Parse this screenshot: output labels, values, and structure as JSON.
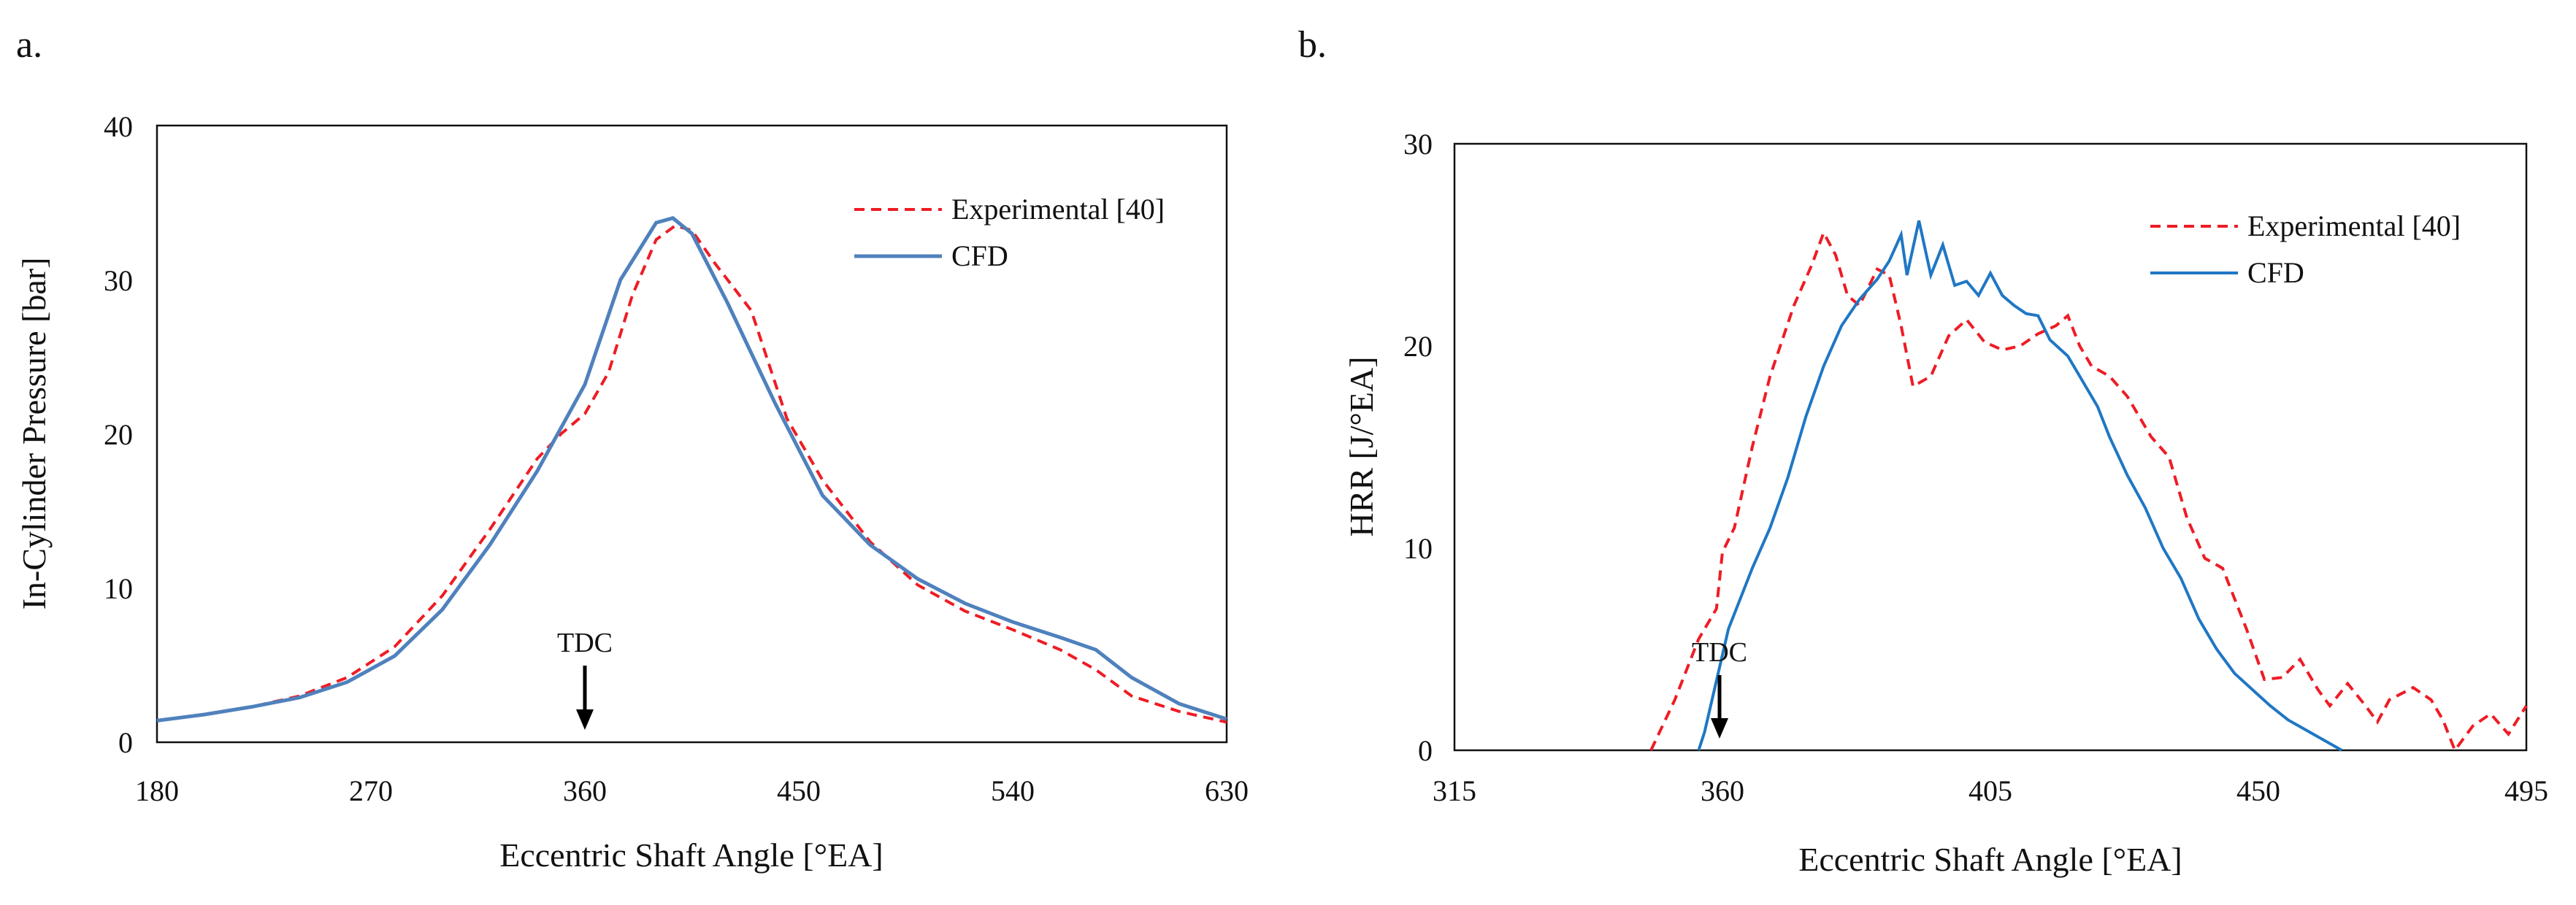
{
  "colors": {
    "experimental": "#ee1c25",
    "cfd_left": "#4f81bd",
    "cfd_right": "#1f77c4",
    "axis": "#111111",
    "arrow": "#000000"
  },
  "chart_data": [
    {
      "panel_label": "a.",
      "type": "line",
      "title": "",
      "xlabel": "Eccentric Shaft Angle [°EA]",
      "ylabel": "In-Cylinder Pressure [bar]",
      "xlim": [
        180,
        630
      ],
      "ylim": [
        0,
        40
      ],
      "xticks": [
        180,
        270,
        360,
        450,
        540,
        630
      ],
      "yticks": [
        0,
        10,
        20,
        30,
        40
      ],
      "grid": false,
      "legend_position": "top-right",
      "annotation": {
        "text": "TDC",
        "x": 360,
        "arrow": "down"
      },
      "series": [
        {
          "name": "Experimental [40]",
          "style": "dashed",
          "color": "experimental",
          "points": [
            [
              180,
              1.4
            ],
            [
              200,
              1.8
            ],
            [
              220,
              2.3
            ],
            [
              240,
              3.0
            ],
            [
              260,
              4.2
            ],
            [
              280,
              6.2
            ],
            [
              300,
              9.5
            ],
            [
              320,
              13.8
            ],
            [
              340,
              18.4
            ],
            [
              350,
              20.0
            ],
            [
              360,
              21.3
            ],
            [
              370,
              24.0
            ],
            [
              380,
              29.0
            ],
            [
              390,
              32.6
            ],
            [
              398,
              33.5
            ],
            [
              405,
              33.2
            ],
            [
              415,
              31.0
            ],
            [
              430,
              28.0
            ],
            [
              445,
              21.0
            ],
            [
              460,
              17.0
            ],
            [
              480,
              13.0
            ],
            [
              500,
              10.2
            ],
            [
              520,
              8.5
            ],
            [
              540,
              7.3
            ],
            [
              560,
              6.0
            ],
            [
              575,
              4.7
            ],
            [
              590,
              3.0
            ],
            [
              610,
              2.0
            ],
            [
              630,
              1.3
            ]
          ]
        },
        {
          "name": "CFD",
          "style": "solid",
          "color": "cfd_left",
          "points": [
            [
              180,
              1.4
            ],
            [
              200,
              1.8
            ],
            [
              220,
              2.3
            ],
            [
              240,
              2.9
            ],
            [
              260,
              3.9
            ],
            [
              280,
              5.6
            ],
            [
              300,
              8.6
            ],
            [
              320,
              12.8
            ],
            [
              340,
              17.6
            ],
            [
              360,
              23.2
            ],
            [
              375,
              30.0
            ],
            [
              390,
              33.7
            ],
            [
              397,
              34.0
            ],
            [
              405,
              33.0
            ],
            [
              420,
              28.5
            ],
            [
              440,
              22.0
            ],
            [
              460,
              16.0
            ],
            [
              480,
              12.8
            ],
            [
              500,
              10.6
            ],
            [
              520,
              9.0
            ],
            [
              540,
              7.8
            ],
            [
              560,
              6.8
            ],
            [
              575,
              6.0
            ],
            [
              590,
              4.2
            ],
            [
              610,
              2.5
            ],
            [
              630,
              1.5
            ]
          ]
        }
      ]
    },
    {
      "panel_label": "b.",
      "type": "line",
      "title": "",
      "xlabel": "Eccentric Shaft Angle [°EA]",
      "ylabel": "HRR [J/°EA]",
      "xlim": [
        315,
        495
      ],
      "ylim": [
        0,
        30
      ],
      "xticks": [
        315,
        360,
        405,
        450,
        495
      ],
      "yticks": [
        0,
        10,
        20,
        30
      ],
      "grid": false,
      "legend_position": "top-right",
      "annotation": {
        "text": "TDC",
        "x": 360,
        "arrow": "down"
      },
      "series": [
        {
          "name": "Experimental [40]",
          "style": "dashed",
          "color": "experimental",
          "points": [
            [
              348,
              0
            ],
            [
              352,
              2.5
            ],
            [
              356,
              5.5
            ],
            [
              359,
              7
            ],
            [
              360,
              9.8
            ],
            [
              362,
              11
            ],
            [
              365,
              15
            ],
            [
              368,
              18.5
            ],
            [
              372,
              22
            ],
            [
              375,
              24
            ],
            [
              377,
              25.6
            ],
            [
              379,
              24.5
            ],
            [
              381,
              22.5
            ],
            [
              383,
              22
            ],
            [
              386,
              23.8
            ],
            [
              388,
              23.5
            ],
            [
              390,
              21
            ],
            [
              392,
              18
            ],
            [
              395,
              18.5
            ],
            [
              398,
              20.5
            ],
            [
              401,
              21.3
            ],
            [
              404,
              20.2
            ],
            [
              407,
              19.8
            ],
            [
              410,
              20
            ],
            [
              413,
              20.6
            ],
            [
              416,
              21
            ],
            [
              418,
              21.5
            ],
            [
              420,
              20
            ],
            [
              422,
              19
            ],
            [
              425,
              18.5
            ],
            [
              428,
              17.5
            ],
            [
              432,
              15.5
            ],
            [
              435,
              14.5
            ],
            [
              438,
              11.5
            ],
            [
              441,
              9.5
            ],
            [
              444,
              9
            ],
            [
              446,
              7.5
            ],
            [
              448,
              6
            ],
            [
              451,
              3.5
            ],
            [
              454,
              3.6
            ],
            [
              457,
              4.5
            ],
            [
              460,
              3.0
            ],
            [
              462,
              2.2
            ],
            [
              465,
              3.3
            ],
            [
              468,
              2.2
            ],
            [
              470,
              1.4
            ],
            [
              472,
              2.5
            ],
            [
              476,
              3.1
            ],
            [
              479,
              2.5
            ],
            [
              481,
              1.5
            ],
            [
              483,
              0
            ],
            [
              486,
              1.2
            ],
            [
              489,
              1.8
            ],
            [
              492,
              0.8
            ],
            [
              495,
              2.2
            ]
          ]
        },
        {
          "name": "CFD",
          "style": "solid",
          "color": "cfd_right",
          "points": [
            [
              356,
              0
            ],
            [
              357,
              0.9
            ],
            [
              361,
              6
            ],
            [
              365,
              9
            ],
            [
              368,
              11
            ],
            [
              371,
              13.5
            ],
            [
              374,
              16.5
            ],
            [
              377,
              19
            ],
            [
              380,
              21
            ],
            [
              383,
              22.3
            ],
            [
              386,
              23.3
            ],
            [
              388,
              24.2
            ],
            [
              390,
              25.5
            ],
            [
              391,
              23.5
            ],
            [
              393,
              26.2
            ],
            [
              395,
              23.5
            ],
            [
              397,
              25
            ],
            [
              399,
              23
            ],
            [
              401,
              23.2
            ],
            [
              403,
              22.5
            ],
            [
              405,
              23.6
            ],
            [
              407,
              22.5
            ],
            [
              409,
              22
            ],
            [
              411,
              21.6
            ],
            [
              413,
              21.5
            ],
            [
              415,
              20.3
            ],
            [
              418,
              19.5
            ],
            [
              420,
              18.5
            ],
            [
              423,
              17
            ],
            [
              425,
              15.5
            ],
            [
              428,
              13.6
            ],
            [
              431,
              12
            ],
            [
              434,
              10
            ],
            [
              437,
              8.5
            ],
            [
              440,
              6.5
            ],
            [
              443,
              5
            ],
            [
              446,
              3.8
            ],
            [
              449,
              3
            ],
            [
              452,
              2.2
            ],
            [
              455,
              1.5
            ],
            [
              458,
              1
            ],
            [
              461,
              0.5
            ],
            [
              464,
              0
            ]
          ]
        }
      ]
    }
  ]
}
